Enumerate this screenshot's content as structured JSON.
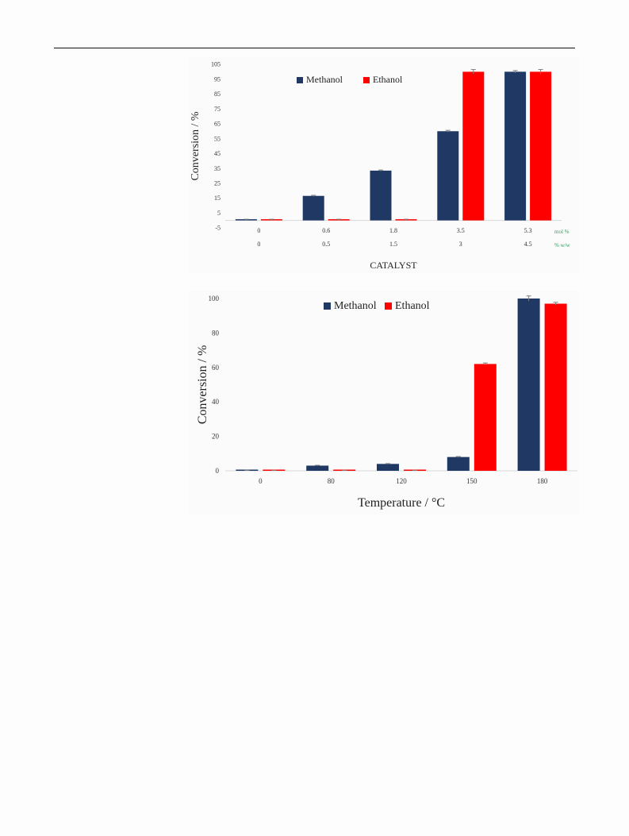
{
  "colors": {
    "methanol": "#1f3864",
    "ethanol": "#ff0000",
    "unit_label": "#2ca25f",
    "axis": "#d9d9d9"
  },
  "chart_data": [
    {
      "type": "bar",
      "title": "",
      "xlabel": "CATALYST",
      "ylabel": "Conversion / %",
      "ylim": [
        -5,
        105
      ],
      "yticks": [
        -5,
        5,
        15,
        25,
        35,
        45,
        55,
        65,
        75,
        85,
        95,
        105
      ],
      "categories": [
        "0",
        "0.6",
        "1.8",
        "3.5",
        "5.3"
      ],
      "categories_secondary": [
        "0",
        "0.5",
        "1.5",
        "3",
        "4.5"
      ],
      "category_units": [
        "mol %",
        "% w/w"
      ],
      "legend": "top",
      "grid": false,
      "series": [
        {
          "name": "Methanol",
          "values": [
            0.5,
            16.5,
            33.5,
            60,
            100
          ],
          "errors": [
            0.3,
            0.4,
            0.4,
            0.6,
            0.8
          ]
        },
        {
          "name": "Ethanol",
          "values": [
            0.5,
            0.5,
            0.5,
            100,
            100
          ],
          "errors": [
            0.3,
            0.3,
            0.3,
            1.5,
            1.5
          ]
        }
      ]
    },
    {
      "type": "bar",
      "title": "",
      "xlabel": "Temperature / °C",
      "ylabel": "Conversion / %",
      "ylim": [
        0,
        100
      ],
      "yticks": [
        0,
        20,
        40,
        60,
        80,
        100
      ],
      "categories": [
        "0",
        "80",
        "120",
        "150",
        "180"
      ],
      "legend": "top",
      "grid": false,
      "series": [
        {
          "name": "Methanol",
          "values": [
            0.2,
            3,
            4,
            8,
            100
          ],
          "errors": [
            0.1,
            0.2,
            0.2,
            0.3,
            1.5
          ]
        },
        {
          "name": "Ethanol",
          "values": [
            0.2,
            0.2,
            0.2,
            62,
            97
          ],
          "errors": [
            0.1,
            0.1,
            0.1,
            0.6,
            0.8
          ]
        }
      ]
    }
  ]
}
